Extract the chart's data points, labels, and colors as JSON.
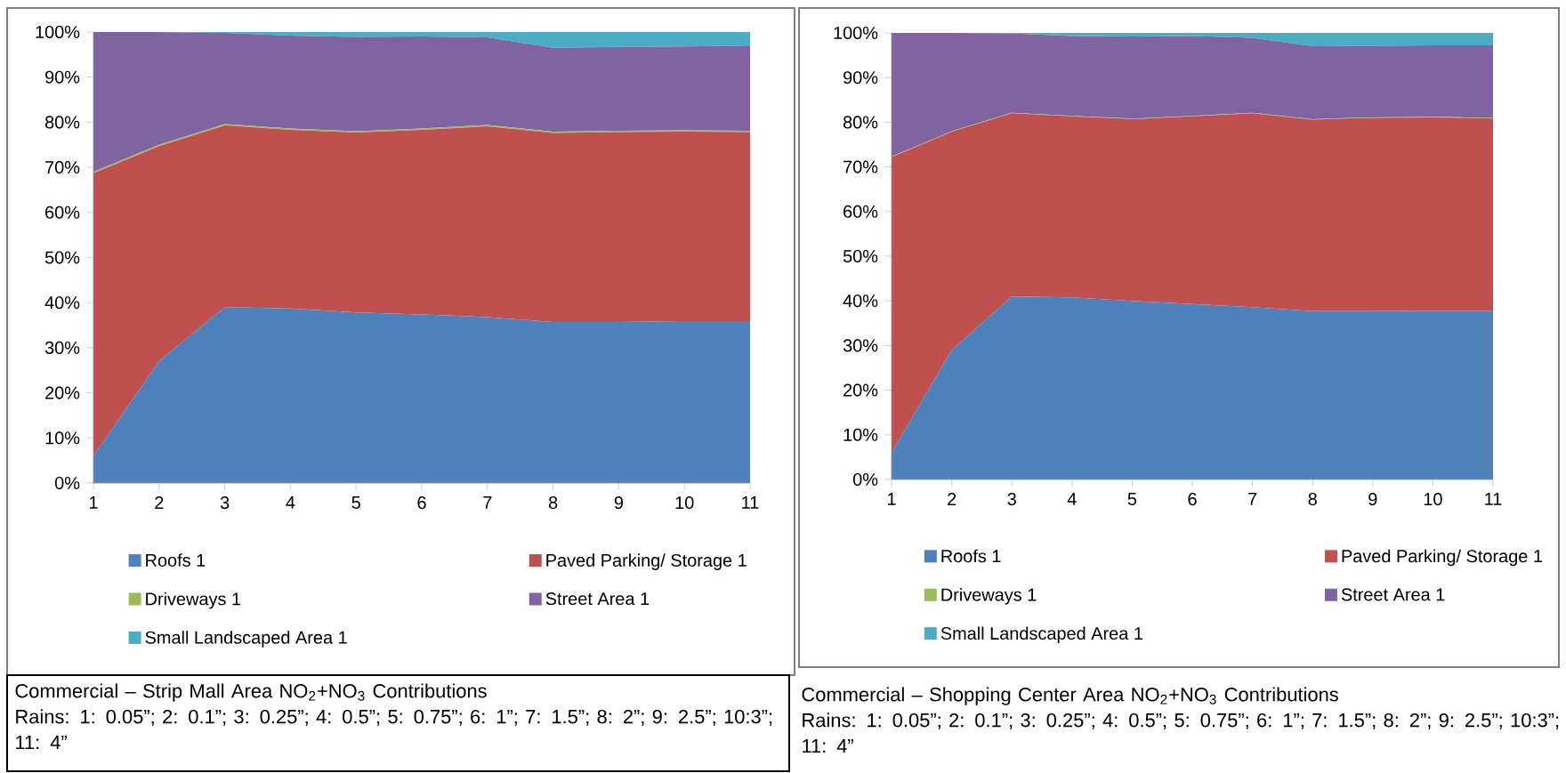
{
  "chart_data": [
    {
      "type": "area",
      "stacked": true,
      "legend": "bottom",
      "title": "Commercial – Strip Mall Area NO$_{2}$+NO$_{3}$ Contributions",
      "subtitle": "Rains: 1: 0.05”; 2: 0.1”; 3: 0.25”; 4: 0.5”; 5: 0.75”; 6: 1”; 7: 1.5”; 8: 2”; 9: 2.5”; 10:3”; 11: 4”",
      "x": [
        1,
        2,
        3,
        4,
        5,
        6,
        7,
        8,
        9,
        10,
        11
      ],
      "xlim": [
        1,
        11
      ],
      "xticks": [
        1,
        2,
        3,
        4,
        5,
        6,
        7,
        8,
        9,
        10,
        11
      ],
      "ylim": [
        0,
        100
      ],
      "yticks": [
        {
          "value": 0,
          "label": "0%"
        },
        {
          "value": 10,
          "label": "10%"
        },
        {
          "value": 20,
          "label": "20%"
        },
        {
          "value": 30,
          "label": "30%"
        },
        {
          "value": 40,
          "label": "40%"
        },
        {
          "value": 50,
          "label": "50%"
        },
        {
          "value": 60,
          "label": "60%"
        },
        {
          "value": 70,
          "label": "70%"
        },
        {
          "value": 80,
          "label": "80%"
        },
        {
          "value": 90,
          "label": "90%"
        },
        {
          "value": 100,
          "label": "100%"
        }
      ],
      "series": [
        {
          "name": "Roofs 1",
          "color": "#4f81bd",
          "values": [
            6,
            27,
            39,
            38.7,
            37.8,
            37.4,
            36.8,
            35.7,
            35.7,
            35.9,
            35.9
          ]
        },
        {
          "name": "Paved Parking/ Storage 1",
          "color": "#c0504d",
          "values": [
            62.7,
            47.7,
            40.3,
            39.6,
            39.9,
            40.9,
            42.3,
            41.9,
            42.1,
            42.0,
            41.9
          ]
        },
        {
          "name": "Driveways 1",
          "color": "#9bbb59",
          "values": [
            0.3,
            0.3,
            0.3,
            0.3,
            0.3,
            0.3,
            0.3,
            0.3,
            0.3,
            0.3,
            0.3
          ]
        },
        {
          "name": "Street Area 1",
          "color": "#8064a2",
          "values": [
            31,
            25,
            20.2,
            20.6,
            20.9,
            20.4,
            19.4,
            18.6,
            18.6,
            18.6,
            18.9
          ]
        },
        {
          "name": "Small Landscaped Area 1",
          "color": "#4bacc6",
          "values": [
            0,
            0,
            0.2,
            0.8,
            1.1,
            1,
            1.2,
            3.5,
            3.3,
            3.2,
            3.0
          ]
        }
      ]
    },
    {
      "type": "area",
      "stacked": true,
      "legend": "bottom",
      "title": "Commercial – Shopping Center Area NO$_{2}$+NO$_{3}$ Contributions",
      "subtitle": "Rains: 1: 0.05”; 2: 0.1”; 3: 0.25”; 4: 0.5”; 5: 0.75”; 6: 1”; 7: 1.5”; 8: 2”; 9: 2.5”; 10:3”; 11: 4”",
      "x": [
        1,
        2,
        3,
        4,
        5,
        6,
        7,
        8,
        9,
        10,
        11
      ],
      "xlim": [
        1,
        11
      ],
      "xticks": [
        1,
        2,
        3,
        4,
        5,
        6,
        7,
        8,
        9,
        10,
        11
      ],
      "ylim": [
        0,
        100
      ],
      "yticks": [
        {
          "value": 0,
          "label": "0%"
        },
        {
          "value": 10,
          "label": "10%"
        },
        {
          "value": 20,
          "label": "20%"
        },
        {
          "value": 30,
          "label": "30%"
        },
        {
          "value": 40,
          "label": "40%"
        },
        {
          "value": 50,
          "label": "50%"
        },
        {
          "value": 60,
          "label": "60%"
        },
        {
          "value": 70,
          "label": "70%"
        },
        {
          "value": 80,
          "label": "80%"
        },
        {
          "value": 90,
          "label": "90%"
        },
        {
          "value": 100,
          "label": "100%"
        }
      ],
      "series": [
        {
          "name": "Roofs 1",
          "color": "#4f81bd",
          "values": [
            6,
            29,
            41,
            40.8,
            40,
            39.3,
            38.6,
            37.7,
            37.7,
            37.8,
            37.8
          ]
        },
        {
          "name": "Paved Parking/ Storage 1",
          "color": "#c0504d",
          "values": [
            66.2,
            48.9,
            41,
            40.5,
            40.7,
            42,
            43.4,
            42.9,
            43.3,
            43.3,
            43.1
          ]
        },
        {
          "name": "Driveways 1",
          "color": "#9bbb59",
          "values": [
            0.1,
            0.1,
            0.1,
            0.1,
            0.1,
            0.1,
            0.1,
            0.1,
            0.1,
            0.1,
            0.1
          ]
        },
        {
          "name": "Street Area 1",
          "color": "#8064a2",
          "values": [
            27.7,
            22,
            17.8,
            17.9,
            18.4,
            17.9,
            16.8,
            16.3,
            16.0,
            16,
            16.2
          ]
        },
        {
          "name": "Small Landscaped Area 1",
          "color": "#4bacc6",
          "values": [
            0,
            0,
            0.1,
            0.7,
            0.8,
            0.7,
            1.1,
            3,
            2.9,
            2.8,
            2.8
          ]
        }
      ]
    }
  ]
}
